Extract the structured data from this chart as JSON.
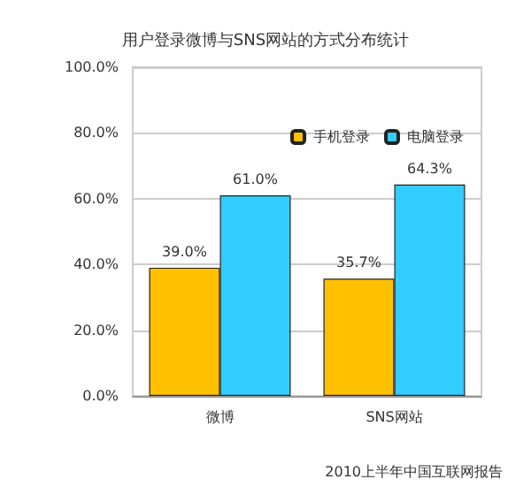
{
  "chart_data": {
    "type": "bar",
    "title": "用户登录微博与SNS网站的方式分布统计",
    "categories": [
      "微博",
      "SNS网站"
    ],
    "series": [
      {
        "name": "手机登录",
        "color": "#ffc000",
        "values": [
          39.0,
          35.7
        ],
        "value_labels": [
          "39.0%",
          "35.7%"
        ]
      },
      {
        "name": "电脑登录",
        "color": "#33ccff",
        "values": [
          61.0,
          64.3
        ],
        "value_labels": [
          "61.0%",
          "64.3%"
        ]
      }
    ],
    "ylim": [
      0,
      100
    ],
    "yticks": [
      {
        "value": 0,
        "label": "0.0%"
      },
      {
        "value": 20,
        "label": "20.0%"
      },
      {
        "value": 40,
        "label": "40.0%"
      },
      {
        "value": 60,
        "label": "60.0%"
      },
      {
        "value": 80,
        "label": "80.0%"
      },
      {
        "value": 100,
        "label": "100.0%"
      }
    ],
    "grid": "y",
    "legend": "top right",
    "annotations": [
      "2010上半年中国互联网报告"
    ]
  }
}
